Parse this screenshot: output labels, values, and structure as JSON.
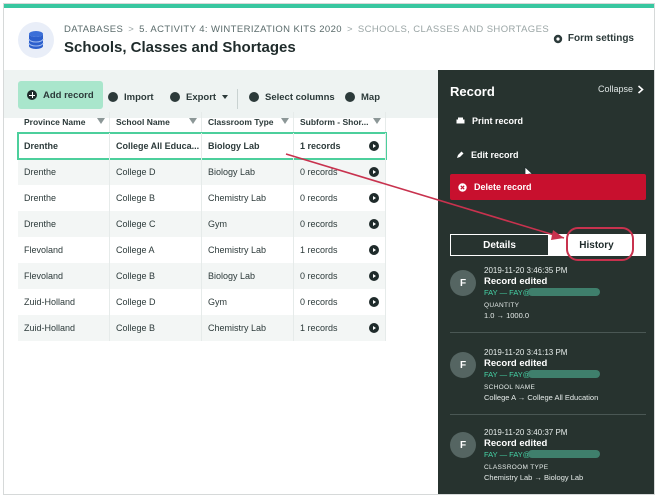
{
  "header": {
    "crumb_databases": "DATABASES",
    "crumb_sep": ">",
    "crumb_activity": "5. ACTIVITY 4: WINTERIZATION KITS 2020",
    "crumb_current": "SCHOOLS, CLASSES AND SHORTAGES",
    "title": "Schools, Classes and Shortages",
    "form_settings": "Form settings"
  },
  "toolbar": {
    "add_record": "Add record",
    "import": "Import",
    "export": "Export",
    "select_columns": "Select columns",
    "map": "Map"
  },
  "table": {
    "headers": [
      "Province Name",
      "School Name",
      "Classroom Type",
      "Subform - Shor..."
    ],
    "rows": [
      [
        "Drenthe",
        "College All Educa...",
        "Biology Lab",
        "1 records"
      ],
      [
        "Drenthe",
        "College D",
        "Biology Lab",
        "0 records"
      ],
      [
        "Drenthe",
        "College B",
        "Chemistry Lab",
        "0 records"
      ],
      [
        "Drenthe",
        "College C",
        "Gym",
        "0 records"
      ],
      [
        "Flevoland",
        "College A",
        "Chemistry Lab",
        "1 records"
      ],
      [
        "Flevoland",
        "College B",
        "Biology Lab",
        "0 records"
      ],
      [
        "Zuid-Holland",
        "College D",
        "Gym",
        "0 records"
      ],
      [
        "Zuid-Holland",
        "College B",
        "Chemistry Lab",
        "1 records"
      ]
    ]
  },
  "panel": {
    "title": "Record",
    "collapse": "Collapse",
    "print": "Print record",
    "edit": "Edit record",
    "delete": "Delete record",
    "tab_details": "Details",
    "tab_history": "History",
    "entries": [
      {
        "avatar": "F",
        "time": "2019-11-20 3:46:35 PM",
        "title": "Record edited",
        "user": "FAY — FAY@",
        "field": "QUANTITY",
        "change": "1.0 → 1000.0"
      },
      {
        "avatar": "F",
        "time": "2019-11-20 3:41:13 PM",
        "title": "Record edited",
        "user": "FAY — FAY@",
        "field": "SCHOOL NAME",
        "change": "College A → College All Education"
      },
      {
        "avatar": "F",
        "time": "2019-11-20 3:40:37 PM",
        "title": "Record edited",
        "user": "FAY — FAY@",
        "field": "CLASSROOM TYPE",
        "change": "Chemistry Lab → Biology Lab"
      }
    ]
  },
  "colors": {
    "accent": "#38c7a0",
    "add_button": "#a9e6cc",
    "panel_bg": "#27332f",
    "danger": "#c8102e",
    "annotation": "#c8324e"
  },
  "icons": [
    "database-icon",
    "gear-icon",
    "plus-icon",
    "import-icon",
    "export-icon",
    "columns-icon",
    "map-icon",
    "filter-icon",
    "chevron-right-icon",
    "print-icon",
    "edit-icon",
    "delete-icon",
    "cursor-icon"
  ]
}
